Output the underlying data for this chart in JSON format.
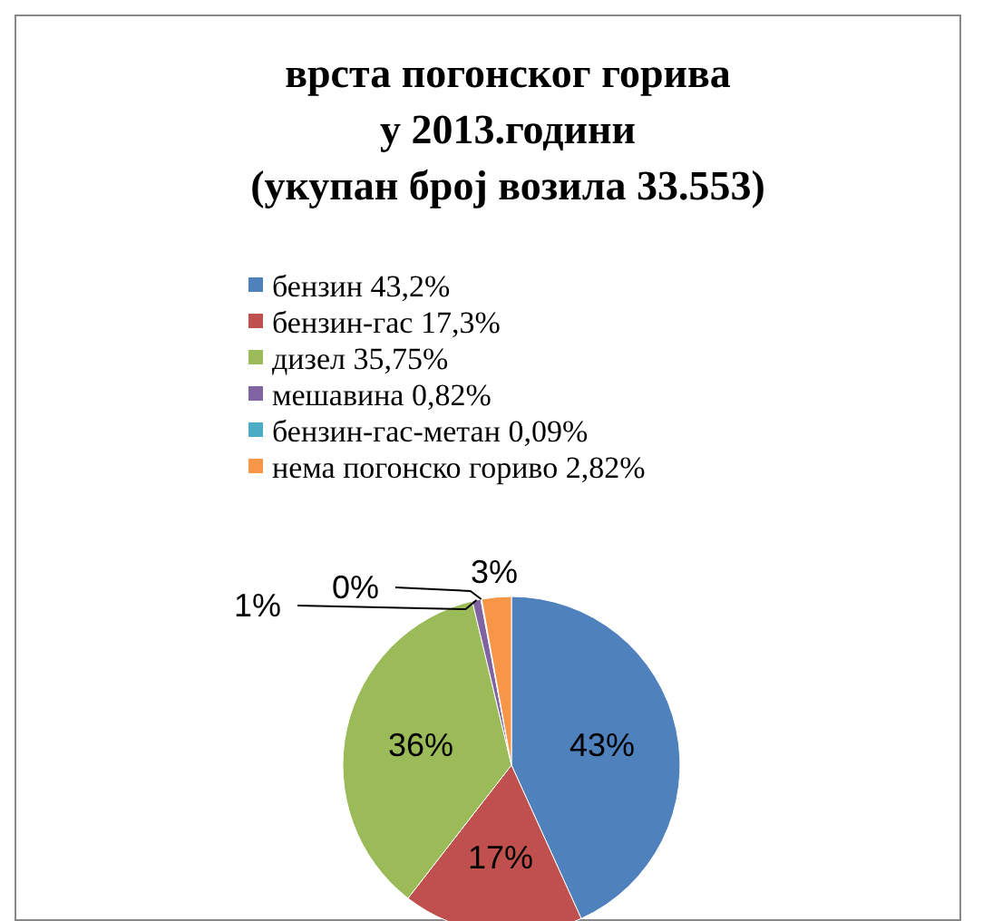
{
  "chart_data": {
    "type": "pie",
    "title": "врста  погонског  горива  у 2013.години",
    "subtitle": "(укупан  број  возила  33.553)",
    "categories": [
      "бензин  43,2%",
      "бензин-гас 17,3%",
      "дизел 35,75%",
      "мешавина 0,82%",
      "бензин-гас-метан 0,09%",
      "нема погонско гориво 2,82%"
    ],
    "values": [
      43.2,
      17.3,
      35.75,
      0.82,
      0.09,
      2.82
    ],
    "colors": [
      "#4f81bd",
      "#c0504d",
      "#9bbb59",
      "#8064a2",
      "#4bacc6",
      "#f79646"
    ],
    "value_labels": [
      "43%",
      "17%",
      "36%",
      "1%",
      "0%",
      "3%"
    ],
    "legend": "top"
  }
}
